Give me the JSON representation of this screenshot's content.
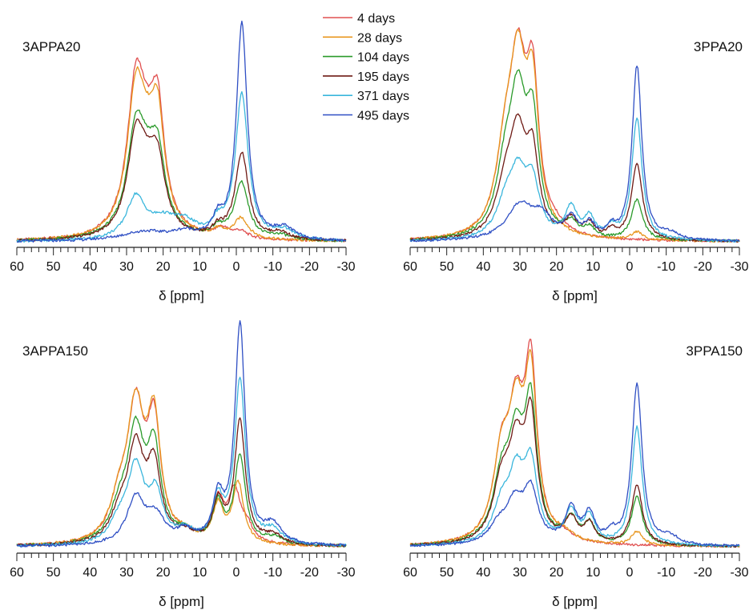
{
  "legend": [
    {
      "label": "4 days",
      "color": "#e05050"
    },
    {
      "label": "28 days",
      "color": "#e8961e"
    },
    {
      "label": "104 days",
      "color": "#2a9a2a"
    },
    {
      "label": "195 days",
      "color": "#6e1a14"
    },
    {
      "label": "371 days",
      "color": "#3ab6dc"
    },
    {
      "label": "495 days",
      "color": "#2f4fc4"
    }
  ],
  "chart_data": [
    {
      "type": "line",
      "title": "3APPA20",
      "xlabel": "δ [ppm]",
      "xlim": [
        60,
        -30
      ],
      "ylim": [
        0,
        1.0
      ],
      "x_ticks": [
        60,
        50,
        40,
        30,
        20,
        10,
        0,
        -10,
        -20,
        -30
      ],
      "x_tick_labels": [
        "60",
        "50",
        "40",
        "30",
        "20",
        "10",
        "0",
        "-10",
        "-20",
        "-30"
      ],
      "series": [
        {
          "name": "4 days",
          "color": "#e05050",
          "peaks": [
            [
              27.5,
              0.56,
              2.8
            ],
            [
              21.5,
              0.44,
              2.2
            ],
            [
              24.5,
              0.28,
              4.0
            ],
            [
              4.0,
              0.04,
              2.5
            ],
            [
              -1.0,
              0.03,
              2.5
            ]
          ]
        },
        {
          "name": "28 days",
          "color": "#e8961e",
          "peaks": [
            [
              27.5,
              0.53,
              2.8
            ],
            [
              21.5,
              0.41,
              2.2
            ],
            [
              24.5,
              0.27,
              4.0
            ],
            [
              5.0,
              0.03,
              2.0
            ],
            [
              -1.3,
              0.09,
              2.4
            ]
          ]
        },
        {
          "name": "104 days",
          "color": "#2a9a2a",
          "peaks": [
            [
              27.5,
              0.39,
              2.8
            ],
            [
              21.5,
              0.28,
              2.4
            ],
            [
              24.5,
              0.22,
              4.0
            ],
            [
              5.0,
              0.04,
              2.0
            ],
            [
              -1.4,
              0.25,
              2.3
            ],
            [
              -12.0,
              0.02,
              3.0
            ]
          ]
        },
        {
          "name": "195 days",
          "color": "#6e1a14",
          "peaks": [
            [
              27.5,
              0.36,
              2.8
            ],
            [
              21.5,
              0.25,
              2.4
            ],
            [
              24.5,
              0.2,
              4.0
            ],
            [
              5.0,
              0.04,
              2.0
            ],
            [
              -1.5,
              0.38,
              2.2
            ],
            [
              -12.0,
              0.03,
              3.0
            ]
          ]
        },
        {
          "name": "371 days",
          "color": "#3ab6dc",
          "peaks": [
            [
              27.5,
              0.18,
              3.0
            ],
            [
              20.0,
              0.08,
              5.0
            ],
            [
              14.0,
              0.06,
              4.0
            ],
            [
              5.0,
              0.06,
              2.0
            ],
            [
              -1.5,
              0.64,
              2.1
            ],
            [
              -13.0,
              0.04,
              3.5
            ]
          ]
        },
        {
          "name": "495 days",
          "color": "#2f4fc4",
          "peaks": [
            [
              25.0,
              0.04,
              8.0
            ],
            [
              14.0,
              0.03,
              4.0
            ],
            [
              5.0,
              0.08,
              1.8
            ],
            [
              -1.5,
              0.95,
              1.8
            ],
            [
              -13.0,
              0.05,
              3.5
            ]
          ]
        }
      ]
    },
    {
      "type": "line",
      "title": "3PPA20",
      "xlabel": "δ [ppm]",
      "xlim": [
        60,
        -30
      ],
      "ylim": [
        0,
        1.0
      ],
      "x_ticks": [
        60,
        50,
        40,
        30,
        20,
        10,
        0,
        -10,
        -20,
        -30
      ],
      "x_tick_labels": [
        "60",
        "50",
        "40",
        "30",
        "20",
        "10",
        "0",
        "-10",
        "-20",
        "-30"
      ],
      "series": [
        {
          "name": "4 days",
          "color": "#e05050",
          "peaks": [
            [
              30.5,
              0.78,
              2.8
            ],
            [
              26.5,
              0.68,
              2.0
            ],
            [
              34.0,
              0.35,
              3.0
            ],
            [
              20.0,
              0.03,
              3.0
            ]
          ]
        },
        {
          "name": "28 days",
          "color": "#e8961e",
          "peaks": [
            [
              30.5,
              0.78,
              2.8
            ],
            [
              26.5,
              0.64,
              2.0
            ],
            [
              34.0,
              0.36,
              3.0
            ],
            [
              -2.0,
              0.04,
              1.8
            ]
          ]
        },
        {
          "name": "104 days",
          "color": "#2a9a2a",
          "peaks": [
            [
              30.5,
              0.64,
              2.8
            ],
            [
              26.5,
              0.5,
              2.0
            ],
            [
              34.0,
              0.28,
              3.0
            ],
            [
              16.0,
              0.07,
              2.0
            ],
            [
              11.0,
              0.05,
              1.8
            ],
            [
              -2.0,
              0.2,
              1.8
            ]
          ]
        },
        {
          "name": "195 days",
          "color": "#6e1a14",
          "peaks": [
            [
              30.5,
              0.47,
              2.8
            ],
            [
              26.5,
              0.36,
              2.0
            ],
            [
              34.0,
              0.22,
              3.0
            ],
            [
              16.0,
              0.09,
              2.0
            ],
            [
              11.0,
              0.07,
              1.8
            ],
            [
              5.0,
              0.04,
              1.5
            ],
            [
              -2.0,
              0.38,
              1.8
            ]
          ]
        },
        {
          "name": "371 days",
          "color": "#3ab6dc",
          "peaks": [
            [
              30.5,
              0.3,
              3.0
            ],
            [
              26.5,
              0.24,
              2.2
            ],
            [
              34.0,
              0.14,
              3.0
            ],
            [
              16.0,
              0.15,
              2.0
            ],
            [
              11.0,
              0.1,
              1.8
            ],
            [
              5.0,
              0.05,
              1.5
            ],
            [
              -2.0,
              0.61,
              1.7
            ]
          ]
        },
        {
          "name": "495 days",
          "color": "#2f4fc4",
          "peaks": [
            [
              30.0,
              0.17,
              4.5
            ],
            [
              24.0,
              0.1,
              3.5
            ],
            [
              16.0,
              0.1,
              2.0
            ],
            [
              11.0,
              0.07,
              1.8
            ],
            [
              5.0,
              0.05,
              1.5
            ],
            [
              -2.0,
              0.87,
              1.6
            ],
            [
              -11.0,
              0.03,
              3.0
            ]
          ]
        }
      ]
    },
    {
      "type": "line",
      "title": "3APPA150",
      "xlabel": "δ [ppm]",
      "xlim": [
        60,
        -30
      ],
      "ylim": [
        0,
        1.0
      ],
      "x_ticks": [
        60,
        50,
        40,
        30,
        20,
        10,
        0,
        -10,
        -20,
        -30
      ],
      "x_tick_labels": [
        "60",
        "50",
        "40",
        "30",
        "20",
        "10",
        "0",
        "-10",
        "-20",
        "-30"
      ],
      "series": [
        {
          "name": "4 days",
          "color": "#e05050",
          "peaks": [
            [
              27.5,
              0.56,
              2.8
            ],
            [
              22.5,
              0.48,
              2.2
            ],
            [
              32.0,
              0.15,
              3.0
            ],
            [
              14.0,
              0.03,
              3.0
            ],
            [
              5.0,
              0.18,
              1.8
            ],
            [
              0.5,
              0.22,
              2.0
            ],
            [
              -3.0,
              0.06,
              2.0
            ]
          ]
        },
        {
          "name": "28 days",
          "color": "#e8961e",
          "peaks": [
            [
              27.5,
              0.56,
              2.8
            ],
            [
              22.5,
              0.5,
              2.2
            ],
            [
              32.0,
              0.15,
              3.0
            ],
            [
              14.0,
              0.03,
              3.0
            ],
            [
              5.0,
              0.16,
              1.8
            ],
            [
              -0.5,
              0.26,
              1.8
            ]
          ]
        },
        {
          "name": "104 days",
          "color": "#2a9a2a",
          "peaks": [
            [
              27.5,
              0.46,
              2.8
            ],
            [
              22.5,
              0.38,
              2.2
            ],
            [
              32.0,
              0.12,
              3.0
            ],
            [
              14.0,
              0.04,
              3.0
            ],
            [
              5.0,
              0.17,
              1.8
            ],
            [
              -1.0,
              0.38,
              1.8
            ],
            [
              -10.0,
              0.03,
              3.0
            ]
          ]
        },
        {
          "name": "195 days",
          "color": "#6e1a14",
          "peaks": [
            [
              27.5,
              0.4,
              2.8
            ],
            [
              22.5,
              0.31,
              2.2
            ],
            [
              32.0,
              0.1,
              3.0
            ],
            [
              14.0,
              0.04,
              3.0
            ],
            [
              5.0,
              0.17,
              1.8
            ],
            [
              -1.0,
              0.53,
              1.8
            ],
            [
              -10.0,
              0.04,
              3.0
            ]
          ]
        },
        {
          "name": "371 days",
          "color": "#3ab6dc",
          "peaks": [
            [
              27.5,
              0.32,
              2.8
            ],
            [
              22.0,
              0.2,
              2.4
            ],
            [
              32.0,
              0.08,
              3.0
            ],
            [
              14.0,
              0.05,
              3.0
            ],
            [
              5.0,
              0.18,
              1.8
            ],
            [
              -1.0,
              0.71,
              1.8
            ],
            [
              -10.0,
              0.06,
              3.0
            ]
          ]
        },
        {
          "name": "495 days",
          "color": "#2f4fc4",
          "peaks": [
            [
              27.5,
              0.2,
              3.0
            ],
            [
              22.0,
              0.11,
              3.0
            ],
            [
              14.0,
              0.05,
              3.0
            ],
            [
              5.0,
              0.19,
              1.8
            ],
            [
              -1.0,
              0.95,
              1.7
            ],
            [
              -10.0,
              0.08,
              3.0
            ]
          ]
        }
      ]
    },
    {
      "type": "line",
      "title": "3PPA150",
      "xlabel": "δ [ppm]",
      "xlim": [
        60,
        -30
      ],
      "ylim": [
        0,
        1.0
      ],
      "x_ticks": [
        60,
        50,
        40,
        30,
        20,
        10,
        0,
        -10,
        -20,
        -30
      ],
      "x_tick_labels": [
        "60",
        "50",
        "40",
        "30",
        "20",
        "10",
        "0",
        "-10",
        "-20",
        "-30"
      ],
      "series": [
        {
          "name": "4 days",
          "color": "#e05050",
          "peaks": [
            [
              27.0,
              0.85,
              2.0
            ],
            [
              31.0,
              0.58,
              2.6
            ],
            [
              35.0,
              0.4,
              2.8
            ],
            [
              18.0,
              0.03,
              3.0
            ]
          ]
        },
        {
          "name": "28 days",
          "color": "#e8961e",
          "peaks": [
            [
              27.0,
              0.79,
              2.0
            ],
            [
              31.0,
              0.58,
              2.6
            ],
            [
              35.0,
              0.4,
              2.8
            ],
            [
              18.0,
              0.04,
              3.0
            ],
            [
              -2.0,
              0.07,
              1.8
            ]
          ]
        },
        {
          "name": "104 days",
          "color": "#2a9a2a",
          "peaks": [
            [
              27.0,
              0.66,
              2.0
            ],
            [
              31.0,
              0.48,
              2.6
            ],
            [
              35.0,
              0.3,
              2.8
            ],
            [
              16.0,
              0.12,
              2.0
            ],
            [
              11.0,
              0.1,
              1.8
            ],
            [
              -2.0,
              0.25,
              1.8
            ]
          ]
        },
        {
          "name": "195 days",
          "color": "#6e1a14",
          "peaks": [
            [
              27.0,
              0.6,
              2.0
            ],
            [
              31.0,
              0.44,
              2.6
            ],
            [
              35.0,
              0.28,
              2.8
            ],
            [
              16.0,
              0.12,
              2.0
            ],
            [
              11.0,
              0.1,
              1.8
            ],
            [
              -2.0,
              0.31,
              1.8
            ]
          ]
        },
        {
          "name": "371 days",
          "color": "#3ab6dc",
          "peaks": [
            [
              27.0,
              0.38,
              2.2
            ],
            [
              31.0,
              0.32,
              2.6
            ],
            [
              35.0,
              0.18,
              2.8
            ],
            [
              16.0,
              0.16,
              2.0
            ],
            [
              11.0,
              0.14,
              1.8
            ],
            [
              -2.0,
              0.61,
              1.7
            ]
          ]
        },
        {
          "name": "495 days",
          "color": "#2f4fc4",
          "peaks": [
            [
              27.0,
              0.26,
              2.4
            ],
            [
              31.5,
              0.2,
              3.0
            ],
            [
              36.0,
              0.08,
              3.0
            ],
            [
              16.0,
              0.18,
              2.0
            ],
            [
              11.0,
              0.15,
              1.8
            ],
            [
              5.0,
              0.05,
              1.5
            ],
            [
              -2.0,
              0.83,
              1.7
            ],
            [
              -11.0,
              0.04,
              3.0
            ]
          ]
        }
      ]
    }
  ]
}
